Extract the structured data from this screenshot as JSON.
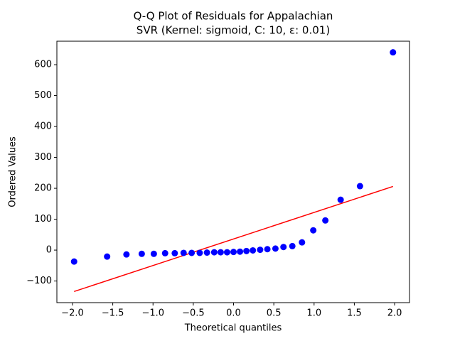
{
  "chart_data": {
    "type": "scatter",
    "title": "Q-Q Plot of Residuals for Appalachian",
    "subtitle": "SVR (Kernel: sigmoid, C: 10, ε: 0.01)",
    "x_label": "Theoretical quantiles",
    "y_label": "Ordered Values",
    "xlim": [
      -2.194,
      2.185
    ],
    "ylim": [
      -170,
      676
    ],
    "xticks": [
      {
        "value": -2.0,
        "label": "−2.0"
      },
      {
        "value": -1.5,
        "label": "−1.5"
      },
      {
        "value": -1.0,
        "label": "−1.0"
      },
      {
        "value": -0.5,
        "label": "−0.5"
      },
      {
        "value": 0,
        "label": "0.0"
      },
      {
        "value": 0.5,
        "label": "0.5"
      },
      {
        "value": 1.0,
        "label": "1.0"
      },
      {
        "value": 1.5,
        "label": "1.5"
      },
      {
        "value": 2.0,
        "label": "2.0"
      }
    ],
    "yticks": [
      {
        "value": -100,
        "label": "−100"
      },
      0,
      100,
      200,
      300,
      400,
      500,
      600
    ],
    "points": {
      "color": "#0000ff",
      "x": [
        -1.98,
        -1.57,
        -1.33,
        -1.14,
        -0.99,
        -0.85,
        -0.73,
        -0.62,
        -0.52,
        -0.42,
        -0.33,
        -0.24,
        -0.16,
        -0.08,
        0,
        0.08,
        0.16,
        0.24,
        0.33,
        0.42,
        0.52,
        0.62,
        0.73,
        0.85,
        0.99,
        1.14,
        1.33,
        1.57,
        1.98
      ],
      "values": [
        -37,
        -21,
        -14,
        -12,
        -12,
        -10,
        -10,
        -9,
        -9,
        -9,
        -8,
        -7,
        -7,
        -7,
        -6,
        -5,
        -3,
        -1,
        1,
        3,
        5,
        10,
        13,
        25,
        64,
        96,
        163,
        207,
        640
      ]
    },
    "fit_line": {
      "color": "#ff0000",
      "x": [
        -1.98,
        1.98
      ],
      "values": [
        -134,
        206
      ]
    }
  }
}
